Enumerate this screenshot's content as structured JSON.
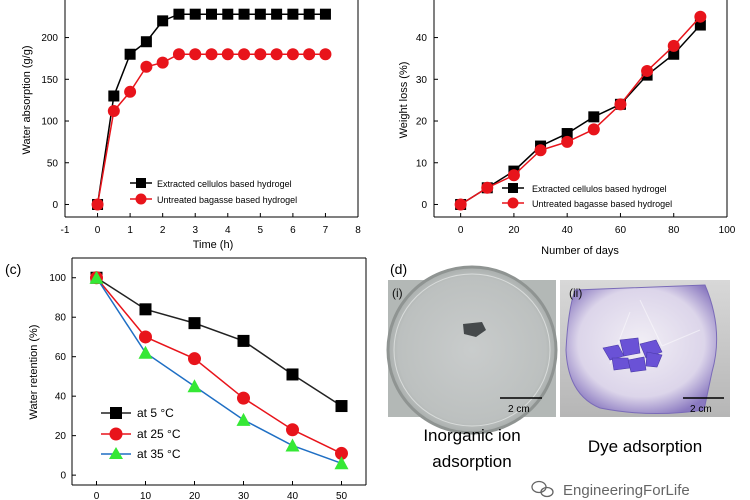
{
  "chart_data": [
    {
      "panel": "a",
      "type": "line",
      "xlabel": "Time (h)",
      "ylabel": "Water absorption (g/g)",
      "xlim": [
        -1,
        8
      ],
      "ylim": [
        -15,
        245
      ],
      "xticks": [
        -1,
        0,
        1,
        2,
        3,
        4,
        5,
        6,
        7,
        8
      ],
      "yticks": [
        0,
        50,
        100,
        150,
        200
      ],
      "legend_position": "bottom-right",
      "series": [
        {
          "name": "Extracted cellulos based hydrogel",
          "marker": "square",
          "color": "#000000",
          "x": [
            0,
            0.5,
            1,
            1.5,
            2,
            2.5,
            3,
            3.5,
            4,
            4.5,
            5,
            5.5,
            6,
            6.5,
            7
          ],
          "y": [
            0,
            130,
            180,
            195,
            220,
            228,
            228,
            228,
            228,
            228,
            228,
            228,
            228,
            228,
            228
          ]
        },
        {
          "name": "Untreated bagasse based hydrogel",
          "marker": "circle",
          "color": "#e8141b",
          "x": [
            0,
            0.5,
            1,
            1.5,
            2,
            2.5,
            3,
            3.5,
            4,
            4.5,
            5,
            5.5,
            6,
            6.5,
            7
          ],
          "y": [
            0,
            112,
            135,
            165,
            170,
            180,
            180,
            180,
            180,
            180,
            180,
            180,
            180,
            180,
            180
          ]
        }
      ]
    },
    {
      "panel": "b",
      "type": "line",
      "xlabel": "Number of days",
      "ylabel": "Weight loss (%)",
      "xlim": [
        -10,
        100
      ],
      "ylim": [
        -3,
        49
      ],
      "xticks": [
        0,
        20,
        40,
        60,
        80,
        100
      ],
      "yticks": [
        0,
        10,
        20,
        30,
        40
      ],
      "legend_position": "bottom-right",
      "series": [
        {
          "name": "Extracted cellulos based hydrogel",
          "marker": "square",
          "color": "#000000",
          "x": [
            0,
            10,
            20,
            30,
            40,
            50,
            60,
            70,
            80,
            90
          ],
          "y": [
            0,
            4,
            8,
            14,
            17,
            21,
            24,
            31,
            36,
            43
          ]
        },
        {
          "name": "Untreated bagasse based hydrogel",
          "marker": "circle",
          "color": "#e8141b",
          "x": [
            0,
            10,
            20,
            30,
            40,
            50,
            60,
            70,
            80,
            90
          ],
          "y": [
            0,
            4,
            7,
            13,
            15,
            18,
            24,
            32,
            38,
            45
          ]
        }
      ]
    },
    {
      "panel": "c",
      "type": "line",
      "ylabel": "Water retention (%)",
      "xlim": [
        -5,
        55
      ],
      "ylim": [
        -5,
        110
      ],
      "xticks": [
        0,
        10,
        20,
        30,
        40,
        50
      ],
      "yticks": [
        0,
        20,
        40,
        60,
        80,
        100
      ],
      "legend_position": "bottom-left",
      "series": [
        {
          "name": "at 5 °C",
          "marker": "square",
          "color": "#000000",
          "line_color": "#222222",
          "x": [
            0,
            10,
            20,
            30,
            40,
            50
          ],
          "y": [
            100,
            84,
            77,
            68,
            51,
            35
          ]
        },
        {
          "name": "at 25 °C",
          "marker": "circle",
          "color": "#e8141b",
          "line_color": "#e8141b",
          "x": [
            0,
            10,
            20,
            30,
            40,
            50
          ],
          "y": [
            100,
            70,
            59,
            39,
            23,
            11
          ]
        },
        {
          "name": "at 35 °C",
          "marker": "triangle",
          "color": "#35e835",
          "line_color": "#1f6fc4",
          "x": [
            0,
            10,
            20,
            30,
            40,
            50
          ],
          "y": [
            100,
            62,
            45,
            28,
            15,
            6
          ]
        }
      ]
    }
  ],
  "labels": {
    "c": "(c)",
    "d": "(d)",
    "d_i": "(i)",
    "d_ii": "(ii)",
    "scale_i": "2 cm",
    "scale_ii": "2 cm",
    "caption_i_line1": "Inorganic ion",
    "caption_i_line2": "adsorption",
    "caption_ii": "Dye adsorption",
    "watermark": "EngineeringForLife"
  }
}
